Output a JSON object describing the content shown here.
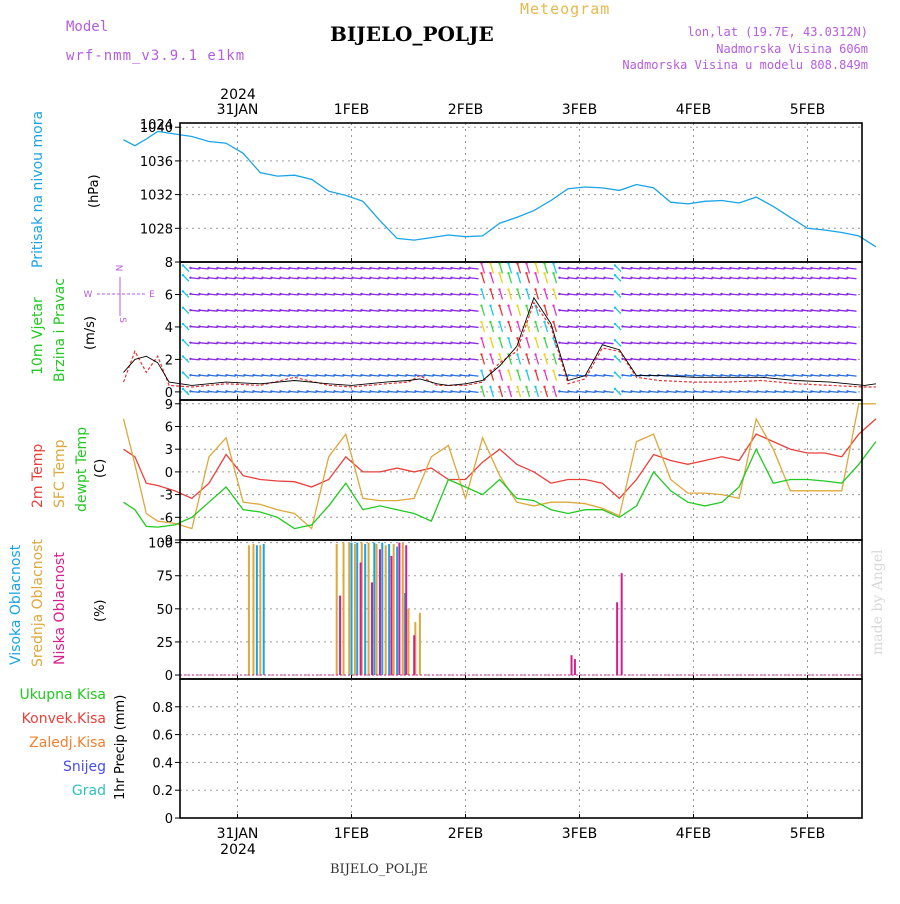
{
  "header": {
    "station": "BIJELO_POLJE",
    "product": "Meteogram",
    "model_label": "Model",
    "model_name": "wrf-nmm_v3.9.1  e1km",
    "location": "lon,lat (19.7E, 43.0312N)",
    "elevation": "Nadmorska Visina 606m",
    "model_elevation": "Nadmorska Visina u modelu 808.849m"
  },
  "footer": {
    "station": "BIJELO_POLJE",
    "watermark": "made by Angel"
  },
  "axes": {
    "top_year": "2024",
    "date_ticks": [
      {
        "label": "31JAN",
        "x": 1
      },
      {
        "label": "1FEB",
        "x": 2
      },
      {
        "label": "2FEB",
        "x": 3
      },
      {
        "label": "3FEB",
        "x": 4
      },
      {
        "label": "4FEB",
        "x": 5
      },
      {
        "label": "5FEB",
        "x": 6
      }
    ],
    "bottom_year": "2024"
  },
  "colors": {
    "pressure": "#1aa3e6",
    "t2m": "#e8413c",
    "sfc_temp": "#dda83c",
    "dewpt": "#22c922",
    "high_cloud": "#1aa3e6",
    "mid_cloud": "#dda83c",
    "low_cloud": "#d61e8e",
    "wind_violet": "#8b2be2",
    "wind_blue": "#2b6fe0",
    "wind_cyan": "#18c8e8",
    "wind_green": "#3ed43e",
    "wind_yellow": "#e8d418",
    "wind_red": "#e83232",
    "wind_magenta": "#e832c8"
  },
  "chart_data": [
    {
      "type": "line",
      "id": "pressure",
      "ylabel_title": "Pritisak na nivou mora",
      "ylabel_unit": "(hPa)",
      "ylim": [
        1024,
        1040.5
      ],
      "yticks": [
        1028,
        1032,
        1036,
        1040
      ],
      "ytick_cut": "1024",
      "grid": true,
      "series": [
        {
          "key": "pressure",
          "x": [
            0,
            0.1,
            0.2,
            0.3,
            0.45,
            0.6,
            0.75,
            0.9,
            1.05,
            1.2,
            1.35,
            1.5,
            1.65,
            1.8,
            1.95,
            2.1,
            2.25,
            2.4,
            2.55,
            2.7,
            2.85,
            3.0,
            3.15,
            3.3,
            3.45,
            3.6,
            3.75,
            3.9,
            4.05,
            4.2,
            4.35,
            4.5,
            4.65,
            4.8,
            4.95,
            5.1,
            5.25,
            5.4,
            5.55,
            5.7,
            5.85,
            6.0,
            6.15,
            6.3,
            6.45,
            6.6
          ],
          "values": [
            1038.5,
            1037.8,
            1038.6,
            1039.5,
            1039.2,
            1038.9,
            1038.3,
            1038.1,
            1036.9,
            1034.6,
            1034.2,
            1034.3,
            1033.8,
            1032.4,
            1031.9,
            1031.2,
            1028.9,
            1026.8,
            1026.6,
            1026.9,
            1027.2,
            1027.0,
            1027.1,
            1028.6,
            1029.3,
            1030.1,
            1031.3,
            1032.7,
            1032.9,
            1032.8,
            1032.5,
            1033.2,
            1032.8,
            1031.1,
            1030.9,
            1031.2,
            1031.3,
            1031.0,
            1031.7,
            1030.6,
            1029.3,
            1028.0,
            1027.8,
            1027.5,
            1027.1,
            1025.8
          ]
        }
      ]
    },
    {
      "type": "line",
      "id": "wind",
      "ylabel_title": "10m Vjetar",
      "ylabel_sub": "Brzina i Pravac",
      "ylabel_unit": "(m/s)",
      "compass": {
        "n": "N",
        "s": "S",
        "w": "W",
        "e": "E"
      },
      "ylim": [
        -0.5,
        8
      ],
      "yticks": [
        0,
        2,
        4,
        6,
        8
      ],
      "grid": true,
      "series": [
        {
          "key": "wind_speed",
          "x": [
            0,
            0.1,
            0.2,
            0.3,
            0.4,
            0.6,
            0.9,
            1.2,
            1.5,
            1.8,
            2.0,
            2.3,
            2.5,
            2.6,
            2.75,
            2.85,
            3.0,
            3.15,
            3.3,
            3.45,
            3.6,
            3.75,
            3.9,
            4.05,
            4.2,
            4.35,
            4.5,
            4.7,
            5.0,
            5.3,
            5.6,
            5.9,
            6.2,
            6.5,
            6.6
          ],
          "values": [
            0.6,
            2.5,
            1.2,
            2.2,
            0.4,
            0.3,
            0.5,
            0.4,
            0.9,
            0.4,
            0.3,
            0.5,
            0.6,
            1.0,
            0.4,
            0.4,
            0.4,
            0.6,
            1.8,
            2.5,
            5.5,
            4.0,
            0.5,
            0.8,
            2.7,
            2.5,
            0.9,
            0.7,
            0.6,
            0.6,
            0.7,
            0.5,
            0.4,
            0.3,
            0.3
          ]
        },
        {
          "key": "wind_gust",
          "x": [
            0,
            0.1,
            0.2,
            0.3,
            0.4,
            0.6,
            0.9,
            1.2,
            1.5,
            1.8,
            2.0,
            2.3,
            2.5,
            2.6,
            2.75,
            2.85,
            3.0,
            3.15,
            3.3,
            3.45,
            3.6,
            3.75,
            3.9,
            4.05,
            4.2,
            4.35,
            4.5,
            4.7,
            5.0,
            5.3,
            5.6,
            5.9,
            6.2,
            6.5,
            6.6
          ],
          "values": [
            1.2,
            2.0,
            2.2,
            1.8,
            0.6,
            0.4,
            0.6,
            0.5,
            0.7,
            0.5,
            0.4,
            0.6,
            0.7,
            0.8,
            0.5,
            0.4,
            0.5,
            0.7,
            1.6,
            2.8,
            5.8,
            4.2,
            0.7,
            1.0,
            2.9,
            2.6,
            1.0,
            1.0,
            0.9,
            0.9,
            0.9,
            0.7,
            0.6,
            0.4,
            0.5
          ]
        }
      ]
    },
    {
      "type": "line",
      "id": "temperature",
      "ylabel_t2m": "2m Temp",
      "ylabel_sfc": "SFC Temp",
      "ylabel_dew": "dewpt Temp",
      "ylabel_unit": "(C)",
      "ylim": [
        -9,
        9.5
      ],
      "yticks": [
        -9,
        -6,
        -3,
        0,
        3,
        6,
        9
      ],
      "grid": true,
      "series": [
        {
          "key": "t2m",
          "x": [
            0,
            0.1,
            0.2,
            0.3,
            0.45,
            0.6,
            0.75,
            0.9,
            1.05,
            1.2,
            1.35,
            1.5,
            1.65,
            1.8,
            1.95,
            2.1,
            2.25,
            2.4,
            2.55,
            2.7,
            2.85,
            3.0,
            3.15,
            3.3,
            3.45,
            3.6,
            3.75,
            3.9,
            4.05,
            4.2,
            4.35,
            4.5,
            4.65,
            4.8,
            4.95,
            5.1,
            5.25,
            5.4,
            5.55,
            5.7,
            5.85,
            6.0,
            6.15,
            6.3,
            6.45,
            6.6
          ],
          "values": [
            3.0,
            2.0,
            -1.5,
            -1.8,
            -2.5,
            -3.5,
            -1.5,
            2.3,
            -0.5,
            -1.0,
            -1.2,
            -1.3,
            -2.0,
            -1.0,
            2.0,
            0.0,
            0.0,
            0.5,
            0.0,
            0.5,
            -1.0,
            -1.0,
            1.3,
            3.0,
            1.0,
            0.0,
            -1.5,
            -1.0,
            -1.0,
            -1.5,
            -3.5,
            -1.0,
            2.3,
            1.5,
            1.0,
            1.5,
            2.0,
            1.5,
            5.0,
            4.0,
            3.0,
            2.5,
            2.5,
            2.0,
            5.0,
            7.0
          ]
        },
        {
          "key": "sfc_temp",
          "x": [
            0,
            0.1,
            0.2,
            0.3,
            0.45,
            0.6,
            0.75,
            0.9,
            1.05,
            1.2,
            1.35,
            1.5,
            1.65,
            1.8,
            1.95,
            2.1,
            2.25,
            2.4,
            2.55,
            2.7,
            2.85,
            3.0,
            3.15,
            3.3,
            3.45,
            3.6,
            3.75,
            3.9,
            4.05,
            4.2,
            4.35,
            4.5,
            4.65,
            4.8,
            4.95,
            5.1,
            5.25,
            5.4,
            5.55,
            5.7,
            5.85,
            6.0,
            6.15,
            6.3,
            6.45,
            6.6
          ],
          "values": [
            7.0,
            1.0,
            -5.5,
            -6.5,
            -6.8,
            -7.5,
            2.0,
            4.5,
            -4.0,
            -4.3,
            -5.0,
            -5.5,
            -7.5,
            2.0,
            5.0,
            -3.5,
            -3.8,
            -3.8,
            -3.5,
            2.0,
            3.5,
            -3.5,
            4.5,
            -0.5,
            -4.0,
            -4.5,
            -4.0,
            -4.0,
            -4.2,
            -4.8,
            -5.8,
            4.0,
            5.0,
            -1.0,
            -2.8,
            -2.8,
            -3.0,
            -3.5,
            7.0,
            3.0,
            -2.5,
            -2.5,
            -2.5,
            -2.5,
            9.0,
            9.0
          ]
        },
        {
          "key": "dewpt",
          "x": [
            0,
            0.1,
            0.2,
            0.3,
            0.45,
            0.6,
            0.75,
            0.9,
            1.05,
            1.2,
            1.35,
            1.5,
            1.65,
            1.8,
            1.95,
            2.1,
            2.25,
            2.4,
            2.55,
            2.7,
            2.85,
            3.0,
            3.15,
            3.3,
            3.45,
            3.6,
            3.75,
            3.9,
            4.05,
            4.2,
            4.35,
            4.5,
            4.65,
            4.8,
            4.95,
            5.1,
            5.25,
            5.4,
            5.55,
            5.7,
            5.85,
            6.0,
            6.15,
            6.3,
            6.45,
            6.6
          ],
          "values": [
            -4.0,
            -5.0,
            -7.2,
            -7.3,
            -7.0,
            -6.0,
            -4.0,
            -2.0,
            -5.0,
            -5.3,
            -6.0,
            -7.5,
            -7.0,
            -4.5,
            -1.5,
            -5.0,
            -4.5,
            -5.0,
            -5.5,
            -6.5,
            -1.0,
            -2.0,
            -3.0,
            -1.0,
            -3.5,
            -3.8,
            -5.0,
            -5.5,
            -5.0,
            -5.0,
            -6.0,
            -4.5,
            0.0,
            -2.5,
            -4.0,
            -4.5,
            -4.0,
            -2.0,
            3.0,
            -1.5,
            -1.0,
            -1.0,
            -1.2,
            -1.5,
            1.0,
            4.0
          ]
        }
      ]
    },
    {
      "type": "bar",
      "id": "clouds",
      "ylabel_high": "Visoka Oblacnost",
      "ylabel_mid": "Srednja Oblacnost",
      "ylabel_low": "Niska Oblacnost",
      "ylabel_unit": "(%)",
      "ylim": [
        -3,
        102
      ],
      "yticks": [
        0,
        25,
        50,
        75,
        100
      ],
      "grid": true,
      "series": [
        {
          "key": "high_cloud",
          "x": [
            1.17,
            1.23,
            2.0,
            2.05,
            2.12,
            2.2,
            2.27,
            2.33,
            2.4,
            2.47,
            2.52
          ],
          "values": [
            98,
            99,
            100,
            100,
            99,
            100,
            100,
            99,
            97,
            62,
            0
          ]
        },
        {
          "key": "mid_cloud",
          "x": [
            1.1,
            1.14,
            1.2,
            1.87,
            1.93,
            1.98,
            2.03,
            2.09,
            2.15,
            2.22,
            2.3,
            2.37,
            2.45,
            2.5,
            2.56,
            2.6
          ],
          "values": [
            98,
            99,
            98,
            99,
            100,
            100,
            99,
            100,
            100,
            99,
            98,
            99,
            100,
            50,
            40,
            47
          ]
        },
        {
          "key": "low_cloud",
          "x": [
            1.27,
            1.9,
            2.08,
            2.18,
            2.25,
            2.35,
            2.42,
            2.48,
            2.55,
            3.93,
            3.96,
            4.33,
            4.37
          ],
          "values": [
            0,
            60,
            85,
            70,
            95,
            90,
            100,
            98,
            30,
            15,
            12,
            55,
            77
          ]
        }
      ]
    },
    {
      "type": "bar",
      "id": "precip",
      "ylabel_unit": "1hr Precip (mm)",
      "legend": [
        "Ukupna Kisa",
        "Konvek.Kisa",
        "Zaledj.Kisa",
        "Snijeg",
        "Grad"
      ],
      "legend_colors": [
        "#22c922",
        "#e8413c",
        "#f08030",
        "#4b4be8",
        "#30c0c0"
      ],
      "ylim": [
        0,
        1.0
      ],
      "yticks": [
        0,
        0.2,
        0.4,
        0.6,
        0.8
      ],
      "ytick_labels": [
        "0",
        "0.2",
        "0.4",
        "0.6",
        "0.8"
      ],
      "grid": true,
      "series": [
        {
          "key": "precip_total",
          "values": []
        }
      ]
    }
  ]
}
